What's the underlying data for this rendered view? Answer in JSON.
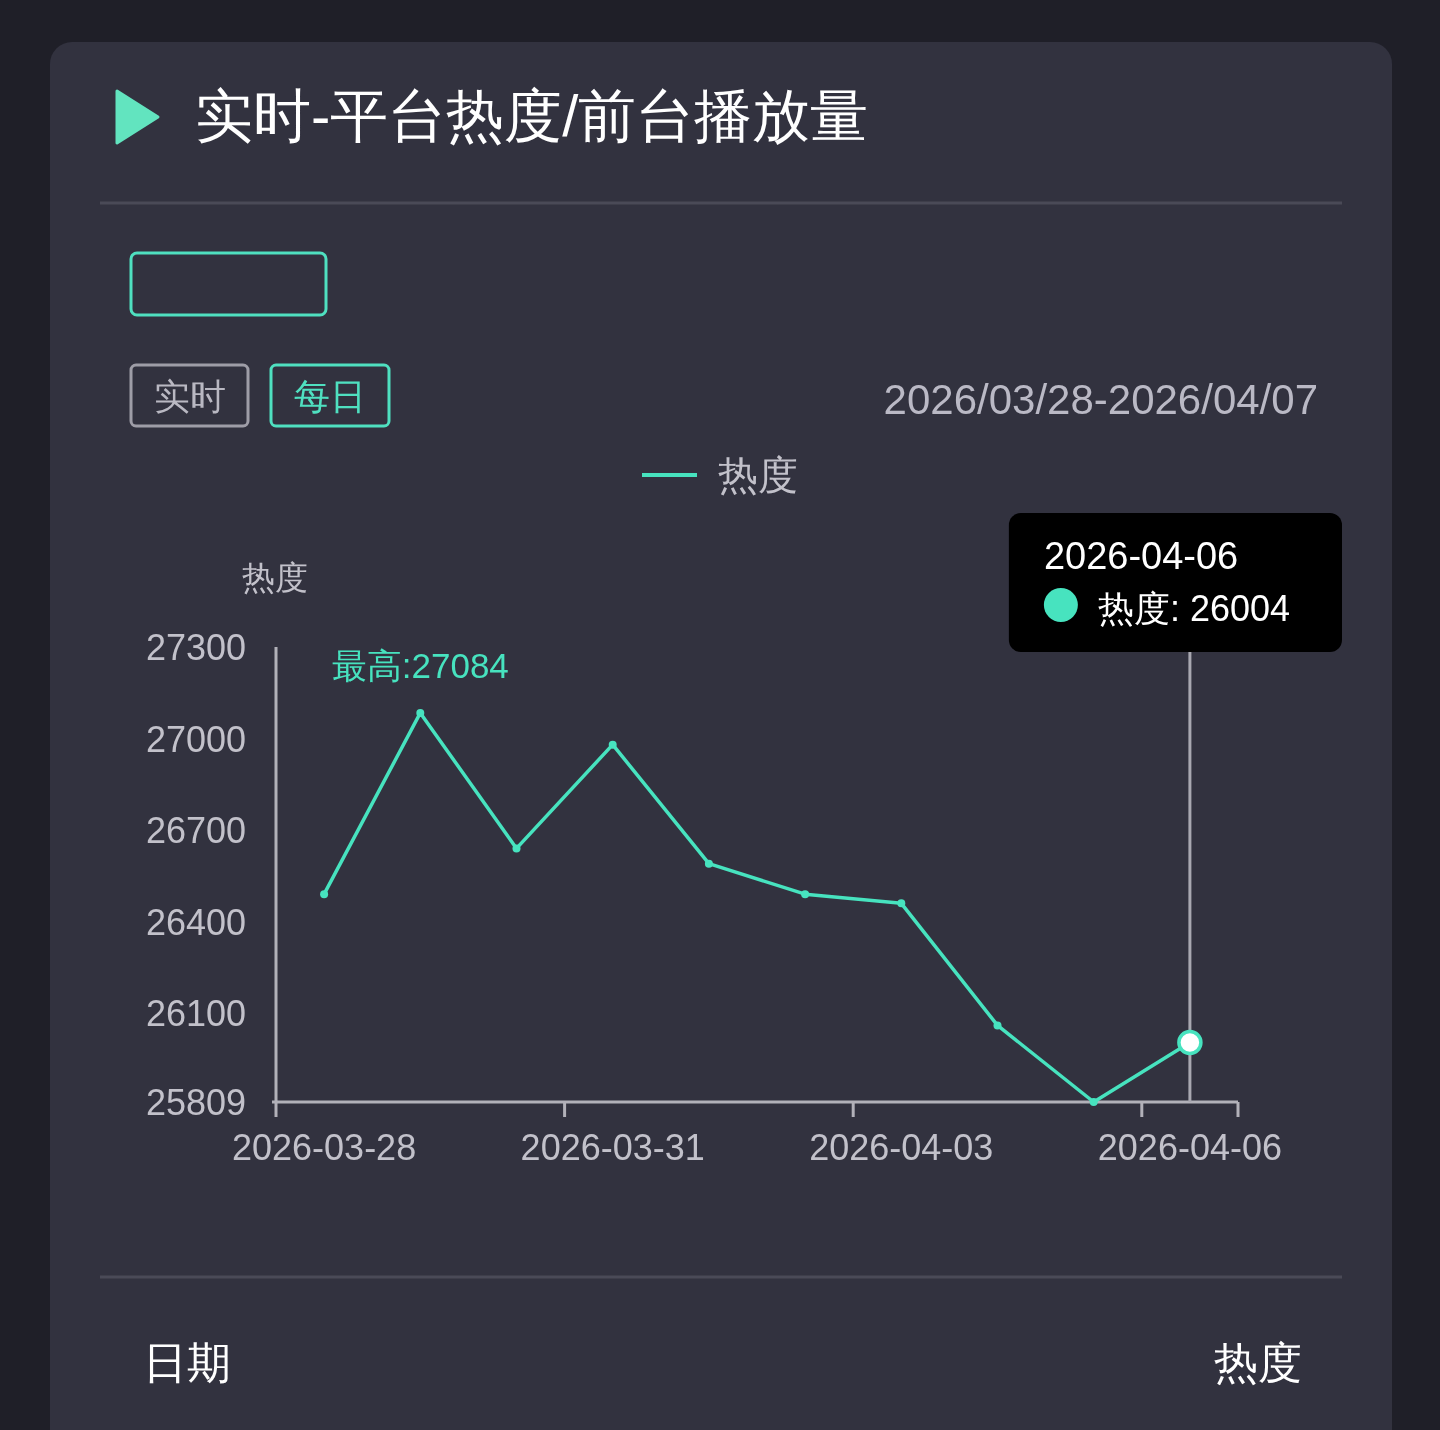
{
  "chart_data": {
    "type": "line",
    "title": "实时-平台热度/前台播放量",
    "ylabel": "热度",
    "categories": [
      "2026-03-28",
      null,
      null,
      "2026-03-31",
      null,
      null,
      "2026-04-03",
      null,
      null,
      "2026-04-06"
    ],
    "series": [
      {
        "name": "热度",
        "color": "#47e3bf",
        "values": [
          26490,
          27084,
          26640,
          26980,
          26590,
          26490,
          26460,
          26060,
          25809,
          26004
        ],
        "value_labels": [
          null,
          "最高:27084",
          null,
          null,
          null,
          null,
          null,
          null,
          null,
          null
        ]
      }
    ],
    "ylim": [
      25809,
      27300
    ],
    "yticks": [
      25809,
      26100,
      26400,
      26700,
      27000,
      27300
    ],
    "legend": "top",
    "marker": "circle",
    "line_style": "solid",
    "grid": false,
    "ref_lines": [
      {
        "axis": "x",
        "value": "2026-04-06",
        "color": "#a9a8b1"
      }
    ],
    "annotations": [
      "实时",
      "每日",
      "2026/03/28-2026/04/07",
      "2026-04-06",
      "热度: 26004",
      "日期",
      "热度"
    ]
  }
}
